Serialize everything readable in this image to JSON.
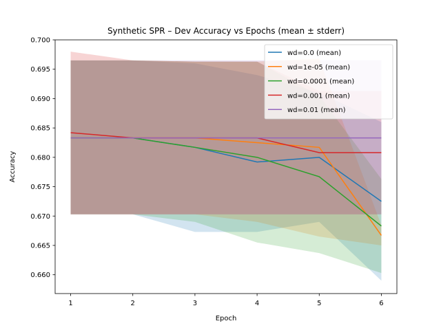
{
  "chart_data": {
    "type": "line",
    "title": "Synthetic SPR – Dev Accuracy vs Epochs (mean ± stderr)",
    "xlabel": "Epoch",
    "ylabel": "Accuracy",
    "x": [
      1,
      2,
      3,
      4,
      5,
      6
    ],
    "xlim": [
      0.75,
      6.25
    ],
    "ylim": [
      0.6568,
      0.7
    ],
    "xticks": [
      "1",
      "2",
      "3",
      "4",
      "5",
      "6"
    ],
    "yticks": [
      "0.660",
      "0.665",
      "0.670",
      "0.675",
      "0.680",
      "0.685",
      "0.690",
      "0.695",
      "0.700"
    ],
    "grid": false,
    "legend_position": "top-right",
    "series": [
      {
        "name": "wd=0.0 (mean)",
        "color": "#1f77b4",
        "values": [
          0.6833,
          0.6833,
          0.6817,
          0.6792,
          0.68,
          0.6725
        ],
        "lower": [
          0.6703,
          0.6703,
          0.6673,
          0.6673,
          0.669,
          0.659
        ],
        "upper": [
          0.6965,
          0.6965,
          0.696,
          0.694,
          0.691,
          0.686
        ]
      },
      {
        "name": "wd=1e-05 (mean)",
        "color": "#ff7f0e",
        "values": [
          0.6833,
          0.6833,
          0.6833,
          0.6825,
          0.6817,
          0.6667
        ],
        "lower": [
          0.6703,
          0.6703,
          0.6703,
          0.669,
          0.6665,
          0.665
        ],
        "upper": [
          0.6965,
          0.6965,
          0.6963,
          0.6963,
          0.6968,
          0.6684
        ]
      },
      {
        "name": "wd=0.0001 (mean)",
        "color": "#2ca02c",
        "values": [
          0.6833,
          0.6833,
          0.6817,
          0.68,
          0.6767,
          0.6683
        ],
        "lower": [
          0.6703,
          0.6703,
          0.669,
          0.6655,
          0.6637,
          0.6603
        ],
        "upper": [
          0.6965,
          0.6965,
          0.6963,
          0.6963,
          0.6905,
          0.6763
        ]
      },
      {
        "name": "wd=0.001 (mean)",
        "color": "#d62728",
        "values": [
          0.6842,
          0.6833,
          0.6833,
          0.6833,
          0.6808,
          0.6808
        ],
        "lower": [
          0.6703,
          0.6703,
          0.6703,
          0.6703,
          0.6703,
          0.6703
        ],
        "upper": [
          0.698,
          0.6965,
          0.6963,
          0.6963,
          0.6913,
          0.6913
        ]
      },
      {
        "name": "wd=0.01 (mean)",
        "color": "#9467bd",
        "values": [
          0.6833,
          0.6833,
          0.6833,
          0.6833,
          0.6833,
          0.6833
        ],
        "lower": [
          0.6703,
          0.6703,
          0.6703,
          0.6703,
          0.6703,
          0.6703
        ],
        "upper": [
          0.6965,
          0.6965,
          0.6965,
          0.6965,
          0.6965,
          0.6965
        ]
      }
    ]
  }
}
